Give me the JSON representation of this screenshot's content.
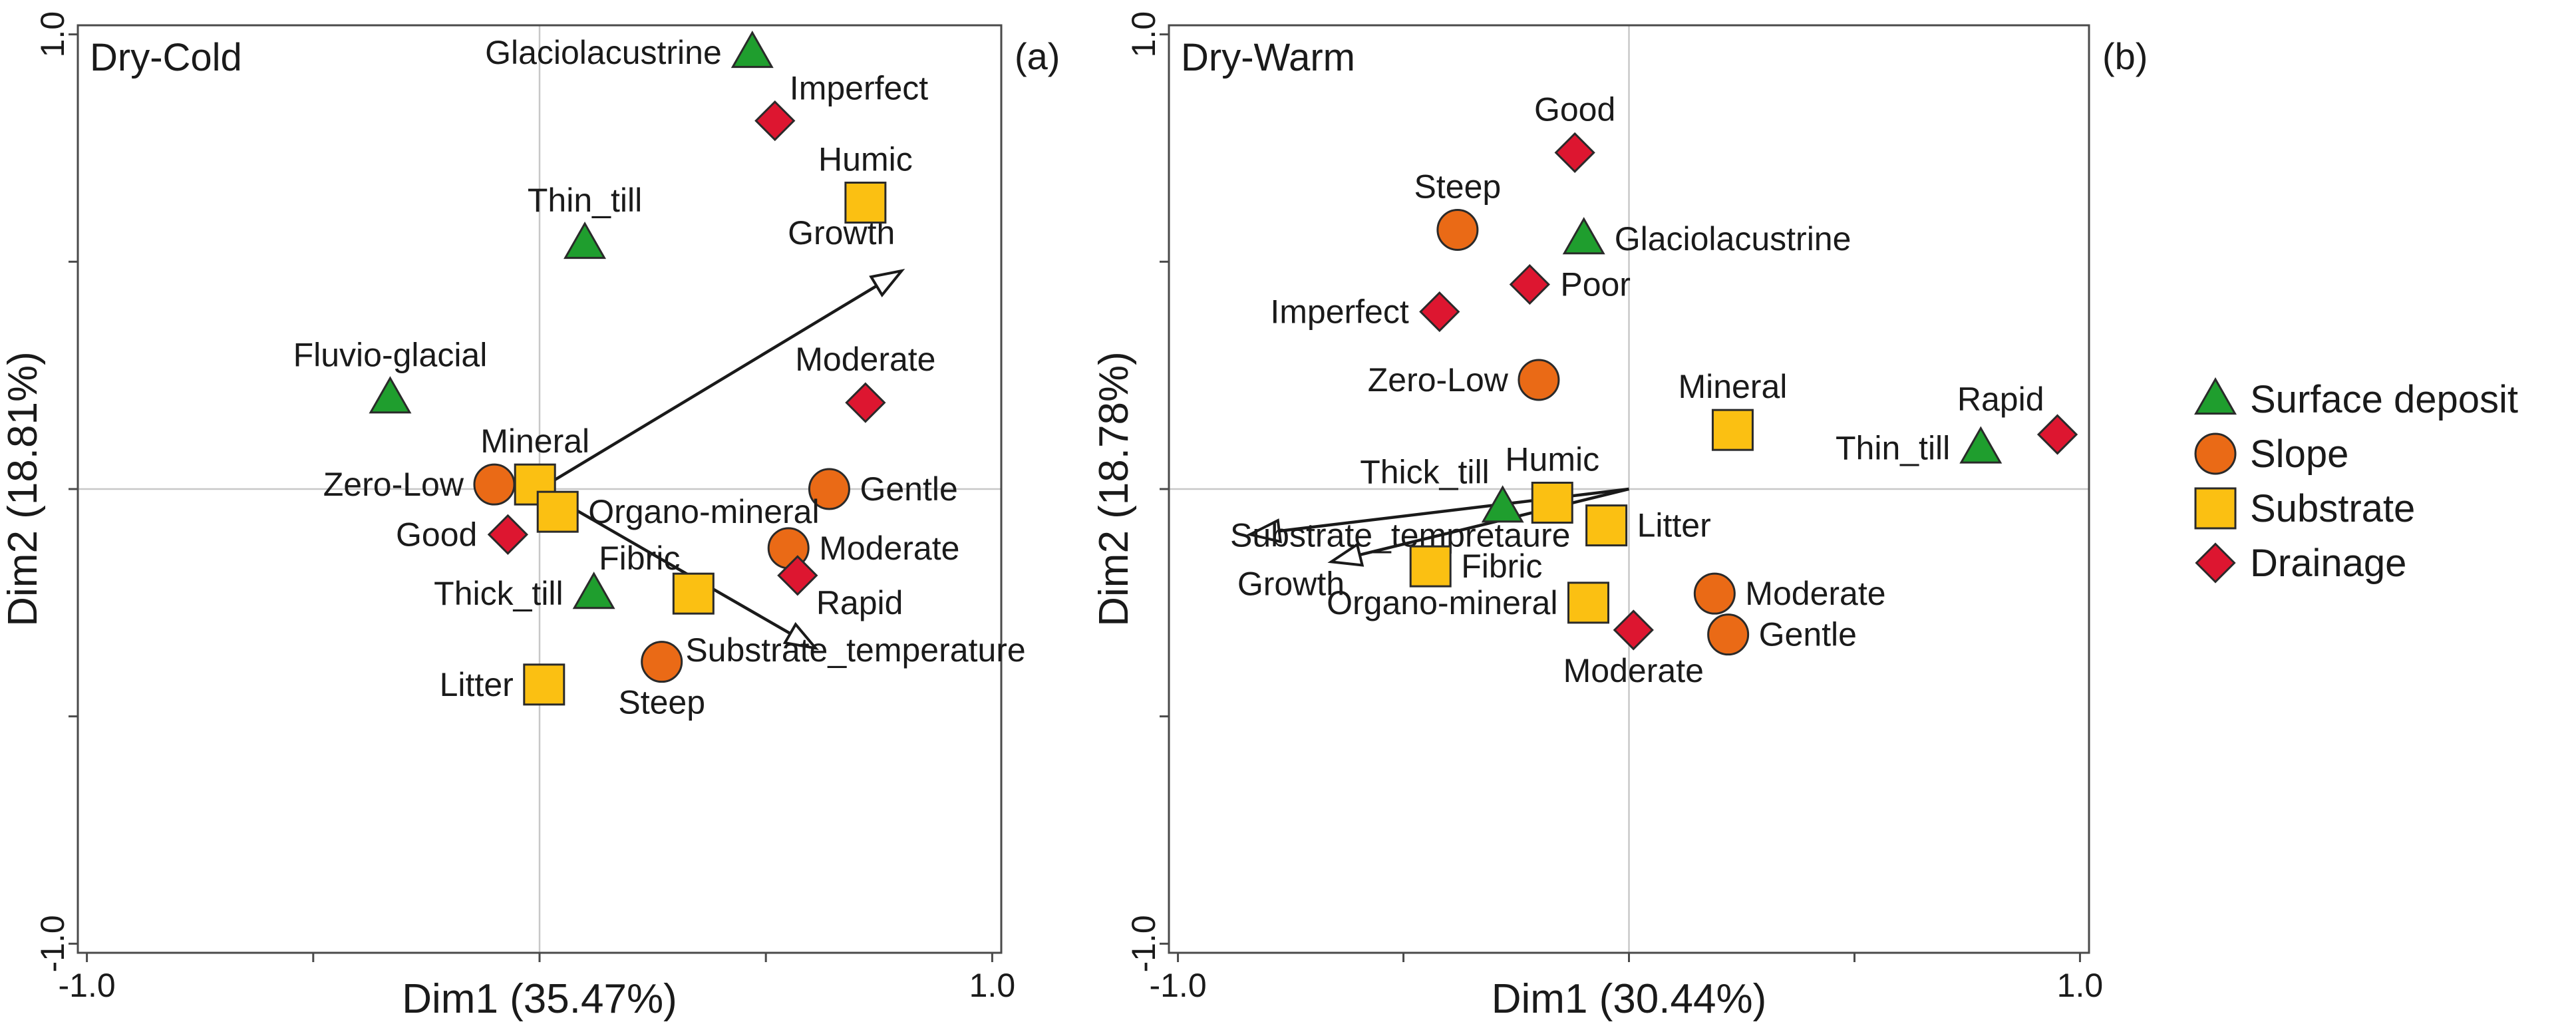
{
  "category_colors": {
    "Surface deposit": "#1f9e2e",
    "Slope": "#ea6a16",
    "Substrate": "#fbc012",
    "Drainage": "#dd1630"
  },
  "category_shapes": {
    "Surface deposit": "triangle",
    "Slope": "circle",
    "Substrate": "square",
    "Drainage": "diamond"
  },
  "legend": {
    "items": [
      {
        "label": "Surface deposit",
        "category": "Surface deposit"
      },
      {
        "label": "Slope",
        "category": "Slope"
      },
      {
        "label": "Substrate",
        "category": "Substrate"
      },
      {
        "label": "Drainage",
        "category": "Drainage"
      }
    ]
  },
  "chart_data": [
    {
      "type": "scatter",
      "panel_tag": "(a)",
      "title": "Dry-Cold",
      "xlabel": "Dim1 (35.47%)",
      "ylabel": "Dim2 (18.81%)",
      "xlim": [
        -1.02,
        1.02
      ],
      "ylim": [
        -1.02,
        1.02
      ],
      "xticks": [
        -1.0,
        -0.5,
        0.0,
        0.5,
        1.0
      ],
      "yticks": [
        -1.0,
        -0.5,
        0.0,
        0.5,
        1.0
      ],
      "xtick_labels": [
        "-1.0",
        "",
        "",
        "",
        "1.0"
      ],
      "ytick_labels": [
        "-1.0",
        "",
        "",
        "",
        "1.0"
      ],
      "grid": "origin lines",
      "points": [
        {
          "label": "Glaciolacustrine",
          "category": "Surface deposit",
          "x": 0.47,
          "y": 0.96,
          "label_pos": "left"
        },
        {
          "label": "Thin_till",
          "category": "Surface deposit",
          "x": 0.1,
          "y": 0.54,
          "label_pos": "above"
        },
        {
          "label": "Fluvio-glacial",
          "category": "Surface deposit",
          "x": -0.33,
          "y": 0.2,
          "label_pos": "above"
        },
        {
          "label": "Thick_till",
          "category": "Surface deposit",
          "x": 0.12,
          "y": -0.23,
          "label_pos": "left"
        },
        {
          "label": "Zero-Low",
          "category": "Slope",
          "x": -0.1,
          "y": 0.01,
          "label_pos": "left"
        },
        {
          "label": "Gentle",
          "category": "Slope",
          "x": 0.64,
          "y": 0.0,
          "label_pos": "right"
        },
        {
          "label": "Moderate",
          "category": "Slope",
          "x": 0.55,
          "y": -0.13,
          "label_pos": "right"
        },
        {
          "label": "Steep",
          "category": "Slope",
          "x": 0.27,
          "y": -0.38,
          "label_pos": "below"
        },
        {
          "label": "Humic",
          "category": "Substrate",
          "x": 0.72,
          "y": 0.63,
          "label_pos": "above"
        },
        {
          "label": "Mineral",
          "category": "Substrate",
          "x": -0.01,
          "y": 0.01,
          "label_pos": "above"
        },
        {
          "label": "Organo-mineral",
          "category": "Substrate",
          "x": 0.04,
          "y": -0.05,
          "label_pos": "right"
        },
        {
          "label": "Fibric",
          "category": "Substrate",
          "x": 0.34,
          "y": -0.23,
          "label_pos": "upleft"
        },
        {
          "label": "Litter",
          "category": "Substrate",
          "x": 0.01,
          "y": -0.43,
          "label_pos": "left"
        },
        {
          "label": "Imperfect",
          "category": "Drainage",
          "x": 0.52,
          "y": 0.81,
          "label_pos": "upright"
        },
        {
          "label": "Moderate",
          "category": "Drainage",
          "x": 0.72,
          "y": 0.19,
          "label_pos": "above"
        },
        {
          "label": "Good",
          "category": "Drainage",
          "x": -0.07,
          "y": -0.1,
          "label_pos": "left"
        },
        {
          "label": "Rapid",
          "category": "Drainage",
          "x": 0.57,
          "y": -0.19,
          "label_pos": "downright"
        }
      ],
      "vectors": [
        {
          "label": "Growth",
          "x0": 0.0,
          "y0": 0.0,
          "x1": 0.8,
          "y1": 0.48,
          "label_pos": "above"
        },
        {
          "label": "Substrate_temperature",
          "x0": 0.0,
          "y0": 0.0,
          "x1": 0.61,
          "y1": -0.35,
          "label_pos": "below"
        }
      ]
    },
    {
      "type": "scatter",
      "panel_tag": "(b)",
      "title": "Dry-Warm",
      "xlabel": "Dim1 (30.44%)",
      "ylabel": "Dim2 (18.78%)",
      "xlim": [
        -1.02,
        1.02
      ],
      "ylim": [
        -1.02,
        1.02
      ],
      "xticks": [
        -1.0,
        -0.5,
        0.0,
        0.5,
        1.0
      ],
      "yticks": [
        -1.0,
        -0.5,
        0.0,
        0.5,
        1.0
      ],
      "xtick_labels": [
        "-1.0",
        "",
        "",
        "",
        "1.0"
      ],
      "ytick_labels": [
        "-1.0",
        "",
        "",
        "",
        "1.0"
      ],
      "grid": "origin lines",
      "points": [
        {
          "label": "Glaciolacustrine",
          "category": "Surface deposit",
          "x": -0.1,
          "y": 0.55,
          "label_pos": "right"
        },
        {
          "label": "Thin_till",
          "category": "Surface deposit",
          "x": 0.78,
          "y": 0.09,
          "label_pos": "left"
        },
        {
          "label": "Thick_till",
          "category": "Surface deposit",
          "x": -0.28,
          "y": -0.04,
          "label_pos": "upleft"
        },
        {
          "label": "Steep",
          "category": "Slope",
          "x": -0.38,
          "y": 0.57,
          "label_pos": "above"
        },
        {
          "label": "Zero-Low",
          "category": "Slope",
          "x": -0.2,
          "y": 0.24,
          "label_pos": "left"
        },
        {
          "label": "Moderate",
          "category": "Slope",
          "x": 0.19,
          "y": -0.23,
          "label_pos": "right"
        },
        {
          "label": "Gentle",
          "category": "Slope",
          "x": 0.22,
          "y": -0.32,
          "label_pos": "right"
        },
        {
          "label": "Mineral",
          "category": "Substrate",
          "x": 0.23,
          "y": 0.13,
          "label_pos": "above"
        },
        {
          "label": "Humic",
          "category": "Substrate",
          "x": -0.17,
          "y": -0.03,
          "label_pos": "above"
        },
        {
          "label": "Litter",
          "category": "Substrate",
          "x": -0.05,
          "y": -0.08,
          "label_pos": "right"
        },
        {
          "label": "Fibric",
          "category": "Substrate",
          "x": -0.44,
          "y": -0.17,
          "label_pos": "right"
        },
        {
          "label": "Organo-mineral",
          "category": "Substrate",
          "x": -0.09,
          "y": -0.25,
          "label_pos": "left"
        },
        {
          "label": "Good",
          "category": "Drainage",
          "x": -0.12,
          "y": 0.74,
          "label_pos": "above"
        },
        {
          "label": "Imperfect",
          "category": "Drainage",
          "x": -0.42,
          "y": 0.39,
          "label_pos": "left"
        },
        {
          "label": "Poor",
          "category": "Drainage",
          "x": -0.22,
          "y": 0.45,
          "label_pos": "right"
        },
        {
          "label": "Rapid",
          "category": "Drainage",
          "x": 0.95,
          "y": 0.12,
          "label_pos": "upleft"
        },
        {
          "label": "Moderate",
          "category": "Drainage",
          "x": 0.01,
          "y": -0.31,
          "label_pos": "below"
        }
      ],
      "vectors": [
        {
          "label": "Substrate_tempretaure",
          "x0": 0.0,
          "y0": 0.0,
          "x1": -0.84,
          "y1": -0.1,
          "label_pos": "right"
        },
        {
          "label": "Growth",
          "x0": 0.0,
          "y0": 0.0,
          "x1": -0.66,
          "y1": -0.16,
          "label_pos": "left"
        }
      ]
    }
  ]
}
